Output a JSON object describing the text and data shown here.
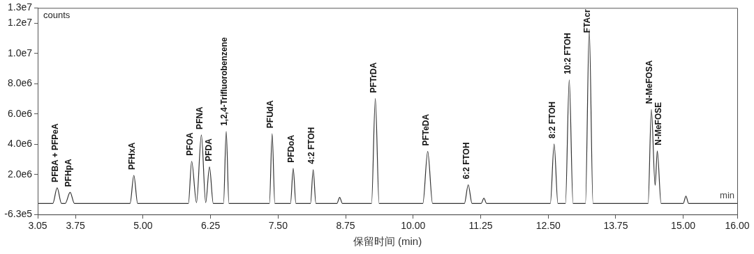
{
  "chart_data": {
    "type": "line",
    "xlabel": "保留时间 (min)",
    "ylabel": "counts",
    "x": [
      3.05,
      3.33,
      3.41,
      3.49,
      3.56,
      3.65,
      3.73,
      4.76,
      4.83,
      4.9,
      5.84,
      5.9,
      5.99,
      6.08,
      6.16,
      6.23,
      6.3,
      6.49,
      6.54,
      6.59,
      7.34,
      7.39,
      7.44,
      7.73,
      7.78,
      7.83,
      8.1,
      8.15,
      8.2,
      8.59,
      8.64,
      8.69,
      9.23,
      9.3,
      9.37,
      10.18,
      10.27,
      10.36,
      10.95,
      11.02,
      11.09,
      11.26,
      11.31,
      11.36,
      12.54,
      12.61,
      12.68,
      12.82,
      12.89,
      12.96,
      13.19,
      13.26,
      13.33,
      14.35,
      14.41,
      14.48,
      14.52,
      14.59,
      15.0,
      15.05,
      15.1,
      16.0
    ],
    "series": [
      {
        "color": "#333333",
        "values": [
          100000,
          100000,
          1130000,
          100000,
          100000,
          830000,
          100000,
          100000,
          1950000,
          100000,
          100000,
          2880000,
          150000,
          4620000,
          150000,
          2510000,
          100000,
          100000,
          4850000,
          100000,
          100000,
          4700000,
          100000,
          100000,
          2420000,
          100000,
          100000,
          2330000,
          100000,
          100000,
          500000,
          100000,
          100000,
          7020000,
          100000,
          100000,
          3530000,
          100000,
          100000,
          1330000,
          100000,
          100000,
          440000,
          100000,
          100000,
          4020000,
          100000,
          100000,
          8250000,
          100000,
          100000,
          11600000,
          100000,
          100000,
          6300000,
          1290000,
          3570000,
          100000,
          100000,
          580000,
          100000,
          100000
        ]
      }
    ],
    "xlim": [
      3.05,
      16.0
    ],
    "xticks": [
      3.05,
      {
        "value": 3.75,
        "label": "3.75"
      },
      {
        "value": 5,
        "label": "5.00"
      },
      {
        "value": 6.25,
        "label": "6.25"
      },
      {
        "value": 7.5,
        "label": "7.50"
      },
      {
        "value": 8.75,
        "label": "8.75"
      },
      {
        "value": 10,
        "label": "10.00"
      },
      {
        "value": 11.25,
        "label": "11.25"
      },
      {
        "value": 12.5,
        "label": "12.50"
      },
      {
        "value": 13.75,
        "label": "13.75"
      },
      {
        "value": 15,
        "label": "15.00"
      },
      {
        "value": 16,
        "label": "16.00"
      }
    ],
    "ylim": [
      -630000,
      13000000
    ],
    "yticks": [
      {
        "value": -630000,
        "label": "-6.3e5"
      },
      {
        "value": 2000000,
        "label": "2.0e6"
      },
      {
        "value": 4000000,
        "label": "4.0e6"
      },
      {
        "value": 6000000,
        "label": "6.0e6"
      },
      {
        "value": 8000000,
        "label": "8.0e6"
      },
      {
        "value": 10000000,
        "label": "1.0e7"
      },
      {
        "value": 12000000,
        "label": "1.2e7"
      },
      {
        "value": 13000000,
        "label": "1.3e7"
      }
    ],
    "grid": false,
    "legend": false,
    "marker": "none",
    "line_style": "solid",
    "annotations": [
      {
        "text": "PFBA + PFPeA",
        "x": 3.41,
        "y": 1130000
      },
      {
        "text": "PFHpA",
        "x": 3.65,
        "y": 830000
      },
      {
        "text": "PFHxA",
        "x": 4.83,
        "y": 1950000
      },
      {
        "text": "PFOA",
        "x": 5.9,
        "y": 2880000
      },
      {
        "text": "PFNA",
        "x": 6.08,
        "y": 4620000
      },
      {
        "text": "PFDA",
        "x": 6.23,
        "y": 2510000
      },
      {
        "text": "1,2,4-Trifluorobenzene",
        "x": 6.54,
        "y": 4850000
      },
      {
        "text": "PFUdA",
        "x": 7.39,
        "y": 4700000
      },
      {
        "text": "PFDoA",
        "x": 7.78,
        "y": 2420000
      },
      {
        "text": "4:2 FTOH",
        "x": 8.15,
        "y": 2330000
      },
      {
        "text": "PFTrDA",
        "x": 9.3,
        "y": 7020000
      },
      {
        "text": "PFTeDA",
        "x": 10.27,
        "y": 3530000
      },
      {
        "text": "6:2 FTOH",
        "x": 11.02,
        "y": 1330000
      },
      {
        "text": "8:2 FTOH",
        "x": 12.61,
        "y": 4020000
      },
      {
        "text": "10:2 FTOH",
        "x": 12.89,
        "y": 8250000
      },
      {
        "text": "FTAcr",
        "x": 13.26,
        "y": 11600000
      },
      {
        "text": "N-MeFOSA",
        "x": 14.41,
        "y": 6300000
      },
      {
        "text": "N-MeFOSE",
        "x": 14.52,
        "y": 3570000
      },
      "min"
    ]
  }
}
